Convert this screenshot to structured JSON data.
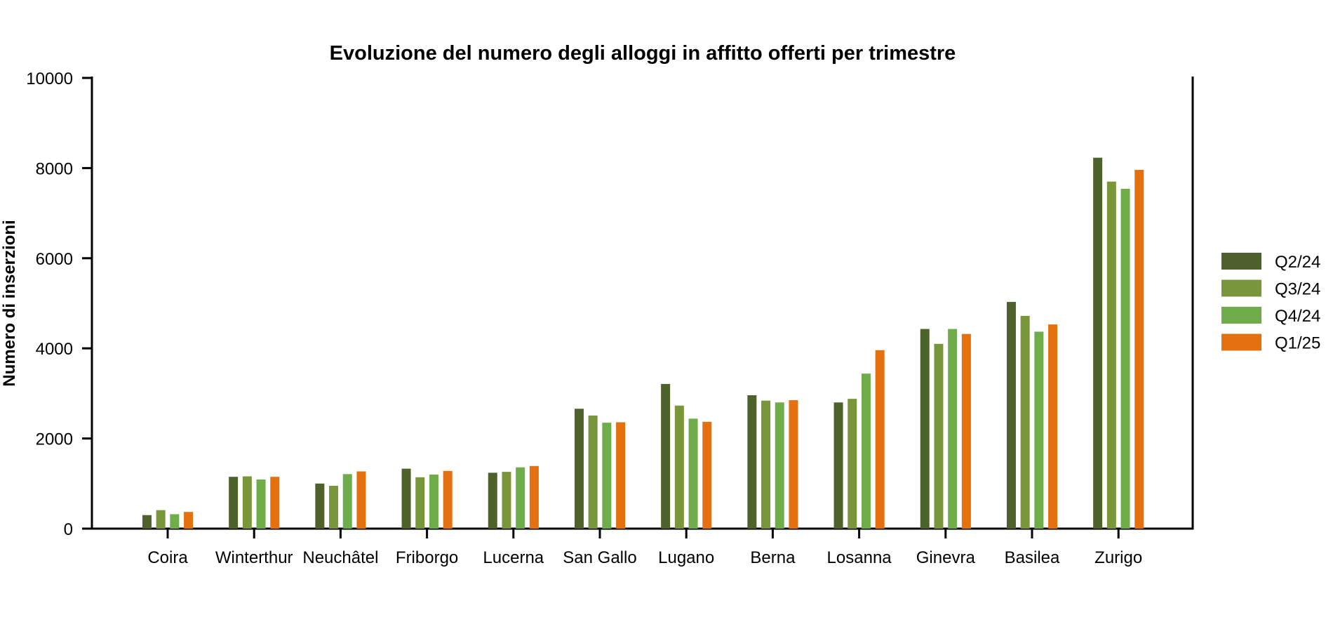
{
  "chart_data": {
    "type": "bar",
    "title": "Evoluzione del numero degli alloggi in affitto offerti per trimestre",
    "xlabel": "",
    "ylabel": "Numero di inserzioni",
    "ylim": [
      0,
      10000
    ],
    "yticks": [
      0,
      2000,
      4000,
      6000,
      8000,
      10000
    ],
    "ytick_labels": [
      "0",
      "2000",
      "4000",
      "6000",
      "8000",
      "10000"
    ],
    "grid": false,
    "legend_position": "right",
    "categories": [
      "Coira",
      "Winterthur",
      "Neuchâtel",
      "Friborgo",
      "Lucerna",
      "San Gallo",
      "Lugano",
      "Berna",
      "Losanna",
      "Ginevra",
      "Basilea",
      "Zurigo"
    ],
    "series": [
      {
        "name": "Q2/24",
        "color": "#4e632c",
        "values": [
          300,
          1150,
          1000,
          1330,
          1240,
          2660,
          3210,
          2960,
          2800,
          4430,
          5030,
          8230
        ]
      },
      {
        "name": "Q3/24",
        "color": "#7a963b",
        "values": [
          410,
          1160,
          950,
          1140,
          1260,
          2510,
          2730,
          2840,
          2880,
          4100,
          4720,
          7700
        ]
      },
      {
        "name": "Q4/24",
        "color": "#6fad4b",
        "values": [
          320,
          1090,
          1210,
          1200,
          1360,
          2350,
          2440,
          2800,
          3440,
          4430,
          4370,
          7540
        ]
      },
      {
        "name": "Q1/25",
        "color": "#e5700f",
        "values": [
          370,
          1150,
          1270,
          1280,
          1390,
          2360,
          2370,
          2850,
          3960,
          4320,
          4530,
          7960
        ]
      }
    ]
  }
}
